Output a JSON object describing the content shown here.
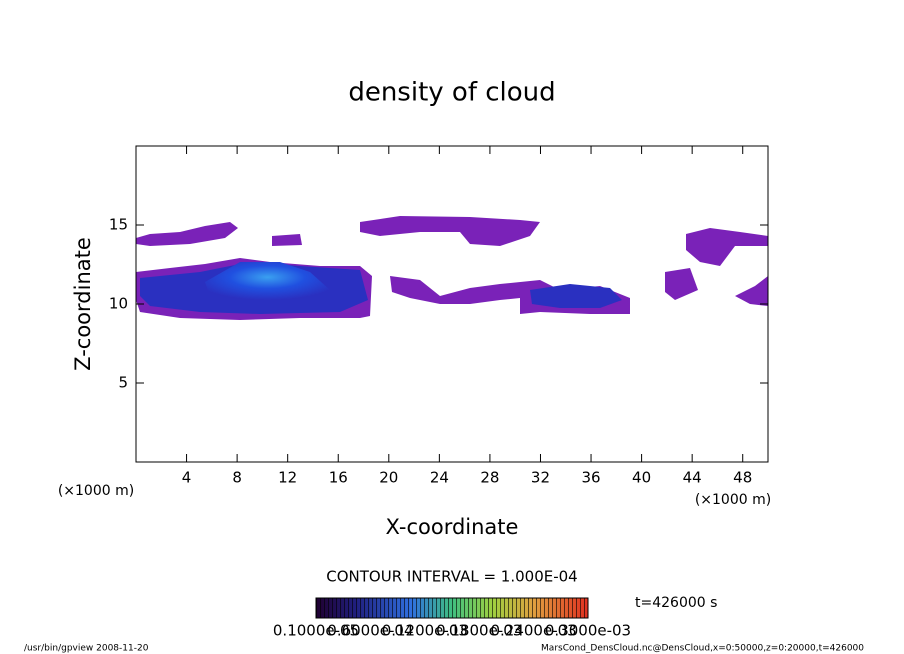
{
  "chart_data": {
    "type": "contour",
    "title": "density of cloud",
    "x_label": "X-coordinate",
    "y_label": "Z-coordinate",
    "x_unit_label_left": "(×1000 m)",
    "x_unit_label_right": "(×1000 m)",
    "xlim": [
      0,
      50
    ],
    "ylim": [
      0,
      20
    ],
    "xticks": [
      4,
      8,
      12,
      16,
      20,
      24,
      28,
      32,
      36,
      40,
      44,
      48
    ],
    "yticks": [
      5,
      10,
      15
    ],
    "contour_interval": "CONTOUR INTERVAL = 1.000E-04",
    "time_label": "t=426000 s",
    "colorbar_labels": [
      "0.1000e-05",
      "0.6000e-04",
      "0.1200e-03",
      "0.1800e-03",
      "0.2400e-03",
      "0.3000e-03"
    ],
    "footer_left": "/usr/bin/gpview   2008-11-20",
    "footer_right": "MarsCond_DensCloud.nc@DensCloud,x=0:50000,z=0:20000,t=426000"
  }
}
